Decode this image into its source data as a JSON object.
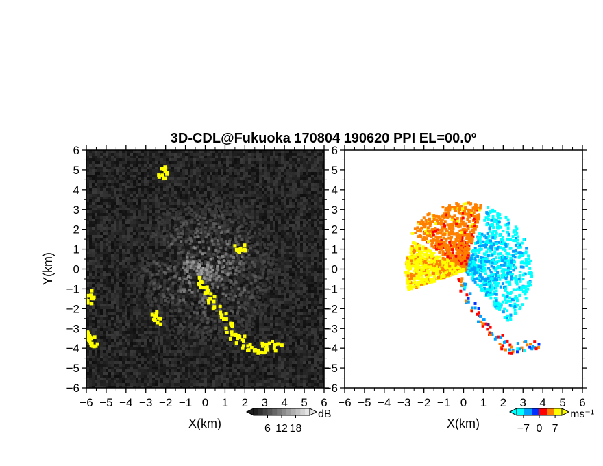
{
  "title": "3D-CDL@Fukuoka 170804 190620 PPI EL=00.0º",
  "chart_data": [
    {
      "type": "heatmap",
      "panel": "left",
      "xlabel": "X(km)",
      "ylabel": "Y(km)",
      "xlim": [
        -6,
        6
      ],
      "ylim": [
        -6,
        6
      ],
      "xticks": [
        "−6",
        "−5",
        "−4",
        "−3",
        "−2",
        "−1",
        "0",
        "1",
        "2",
        "3",
        "4",
        "5",
        "6"
      ],
      "yticks": [
        "−6",
        "−5",
        "−4",
        "−3",
        "−2",
        "−1",
        "0",
        "1",
        "2",
        "3",
        "4",
        "5",
        "6"
      ],
      "colorbar": {
        "unit": "dB",
        "ticks": [
          "6",
          "12",
          "18"
        ],
        "tick_values": [
          6,
          12,
          18
        ],
        "range": [
          0,
          24
        ]
      },
      "highlight_color": "#ffff00",
      "background_color": "#141414",
      "highlight_regions": [
        {
          "x": [
            -0.3,
            -0.1,
            0.2,
            0.5,
            0.8,
            1.1,
            1.4,
            1.7,
            2.0,
            2.4,
            2.8,
            3.2,
            3.6
          ],
          "y": [
            -0.6,
            -0.9,
            -1.4,
            -1.9,
            -2.4,
            -2.9,
            -3.2,
            -3.5,
            -3.8,
            -4.0,
            -3.9,
            -3.8,
            -3.8
          ]
        },
        {
          "x": [
            -6.0,
            -5.8,
            -5.7
          ],
          "y": [
            -3.2,
            -3.5,
            -3.8
          ]
        },
        {
          "x": [
            -6.0,
            -5.9
          ],
          "y": [
            -1.1,
            -1.5
          ]
        },
        {
          "x": [
            -2.6,
            -2.5
          ],
          "y": [
            -2.3,
            -2.5
          ]
        },
        {
          "x": [
            1.6,
            1.8
          ],
          "y": [
            1.1,
            1.2
          ]
        },
        {
          "x": [
            -2.3,
            -2.2
          ],
          "y": [
            4.8,
            5.0
          ]
        }
      ]
    },
    {
      "type": "heatmap",
      "panel": "right",
      "xlabel": "X(km)",
      "ylabel": "",
      "xlim": [
        -6,
        6
      ],
      "ylim": [
        -6,
        6
      ],
      "xticks": [
        "−6",
        "−5",
        "−4",
        "−3",
        "−2",
        "−1",
        "0",
        "1",
        "2",
        "3",
        "4",
        "5",
        "6"
      ],
      "yticks": [
        "−6",
        "−5",
        "−4",
        "−3",
        "−2",
        "−1",
        "0",
        "1",
        "2",
        "3",
        "4",
        "5",
        "6"
      ],
      "colorbar": {
        "unit": "ms⁻¹",
        "ticks": [
          "−7",
          "0",
          "7"
        ],
        "tick_values": [
          -7,
          0,
          7
        ],
        "range": [
          -10,
          10
        ]
      },
      "colormap": [
        "#00ffff",
        "#00a0ff",
        "#0030ff",
        "#ff0000",
        "#ff8000",
        "#ffff00"
      ],
      "sectors": [
        {
          "angle_from": -50,
          "angle_to": 70,
          "range_km": 3.4,
          "velocity": -6
        },
        {
          "angle_from": 75,
          "angle_to": 145,
          "range_km": 3.4,
          "velocity": 4
        },
        {
          "angle_from": 150,
          "angle_to": 200,
          "range_km": 3.0,
          "velocity": 7
        }
      ],
      "strip_points": {
        "x": [
          -0.3,
          -0.1,
          0.2,
          0.5,
          0.8,
          1.1,
          1.4,
          1.7,
          2.0,
          2.4,
          2.8,
          3.2,
          3.6
        ],
        "y": [
          -0.6,
          -0.9,
          -1.4,
          -1.9,
          -2.4,
          -2.9,
          -3.2,
          -3.5,
          -3.8,
          -4.0,
          -3.9,
          -3.8,
          -3.8
        ]
      }
    }
  ]
}
